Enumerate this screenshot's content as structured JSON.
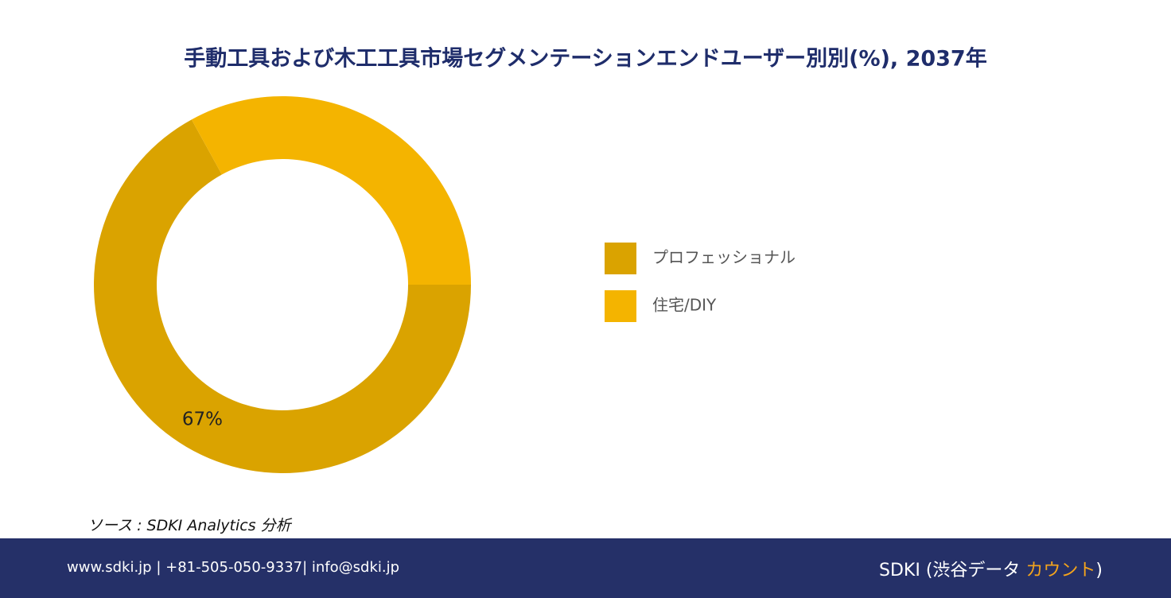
{
  "chart_data": {
    "type": "pie",
    "title": "手動工具および木工工具市場セグメンテーションエンドユーザー別別(%), 2037年",
    "categories": [
      "プロフェッショナル",
      "住宅/DIY"
    ],
    "values": [
      67,
      33
    ],
    "value_labels": [
      "67%",
      null
    ],
    "colors": [
      "#daa300",
      "#f4b400"
    ],
    "legend": "right"
  },
  "source": "ソース : SDKI Analytics 分析",
  "footer": {
    "contact": "www.sdki.jp | +81-505-050-9337| info@sdki.jp",
    "brand": "SDKI (渋谷データ ",
    "brand_highlight": "カウント",
    "brand_end": ")"
  }
}
